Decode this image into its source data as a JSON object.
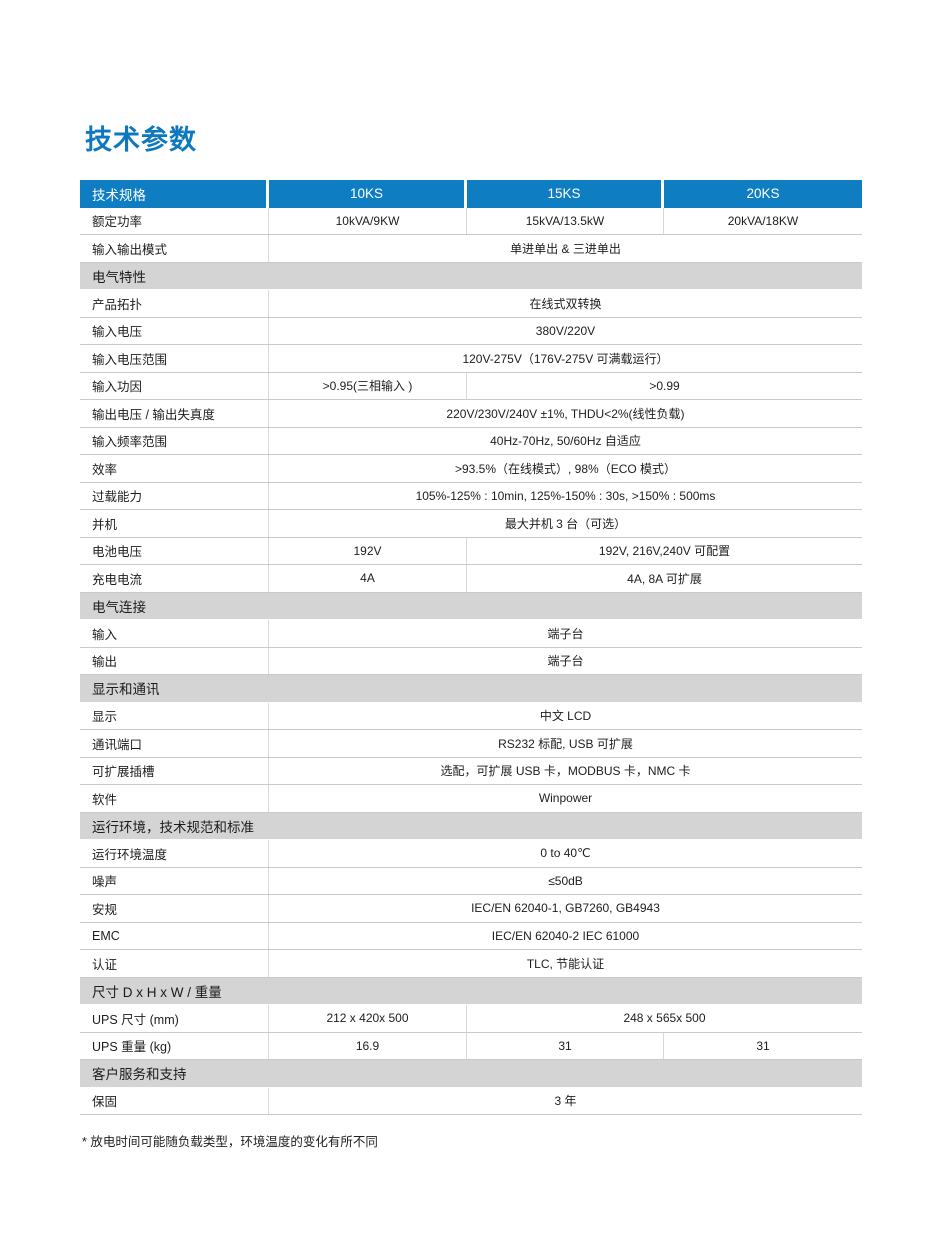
{
  "page": {
    "title": "技术参数",
    "footnote": "* 放电时间可能随负载类型，环境温度的变化有所不同"
  },
  "colors": {
    "header_blue": "#0e7dc2",
    "title_blue": "#0d78bf",
    "section_gray": "#d4d4d4",
    "row_line_gray": "#c9c9c9"
  },
  "table": {
    "columns": [
      "技术规格",
      "10KS",
      "15KS",
      "20KS"
    ],
    "rows": [
      {
        "type": "data",
        "label": "额定功率",
        "cells": [
          {
            "text": "10kVA/9KW",
            "span": 1
          },
          {
            "text": "15kVA/13.5kW",
            "span": 1
          },
          {
            "text": "20kVA/18KW",
            "span": 1
          }
        ]
      },
      {
        "type": "data",
        "label": "输入输出模式",
        "cells": [
          {
            "text": "单进单出 & 三进单出",
            "span": 3
          }
        ]
      },
      {
        "type": "section",
        "label": "电气特性"
      },
      {
        "type": "data",
        "label": "产品拓扑",
        "cells": [
          {
            "text": "在线式双转换",
            "span": 3
          }
        ]
      },
      {
        "type": "data",
        "label": "输入电压",
        "cells": [
          {
            "text": "380V/220V",
            "span": 3
          }
        ]
      },
      {
        "type": "data",
        "label": "输入电压范围",
        "cells": [
          {
            "text": "120V-275V（176V-275V 可满载运行）",
            "span": 3
          }
        ]
      },
      {
        "type": "data",
        "label": "输入功因",
        "cells": [
          {
            "text": ">0.95(三相输入 )",
            "span": 1
          },
          {
            "text": ">0.99",
            "span": 2
          }
        ]
      },
      {
        "type": "data",
        "label": "输出电压 / 输出失真度",
        "cells": [
          {
            "text": "220V/230V/240V ±1%, THDU<2%(线性负载)",
            "span": 3
          }
        ]
      },
      {
        "type": "data",
        "label": "输入频率范围",
        "cells": [
          {
            "text": "40Hz-70Hz, 50/60Hz 自适应",
            "span": 3
          }
        ]
      },
      {
        "type": "data",
        "label": "效率",
        "cells": [
          {
            "text": ">93.5%（在线模式）, 98%（ECO 模式）",
            "span": 3
          }
        ]
      },
      {
        "type": "data",
        "label": "过载能力",
        "cells": [
          {
            "text": "105%-125% : 10min, 125%-150% : 30s, >150% : 500ms",
            "span": 3
          }
        ]
      },
      {
        "type": "data",
        "label": "并机",
        "cells": [
          {
            "text": "最大并机 3 台（可选）",
            "span": 3
          }
        ]
      },
      {
        "type": "data",
        "label": "电池电压",
        "cells": [
          {
            "text": "192V",
            "span": 1
          },
          {
            "text": "192V, 216V,240V 可配置",
            "span": 2
          }
        ]
      },
      {
        "type": "data",
        "label": "充电电流",
        "cells": [
          {
            "text": "4A",
            "span": 1
          },
          {
            "text": "4A, 8A 可扩展",
            "span": 2
          }
        ]
      },
      {
        "type": "section",
        "label": "电气连接"
      },
      {
        "type": "data",
        "label": "输入",
        "cells": [
          {
            "text": "端子台",
            "span": 3
          }
        ]
      },
      {
        "type": "data",
        "label": "输出",
        "cells": [
          {
            "text": "端子台",
            "span": 3
          }
        ]
      },
      {
        "type": "section",
        "label": "显示和通讯"
      },
      {
        "type": "data",
        "label": "显示",
        "cells": [
          {
            "text": "中文 LCD",
            "span": 3
          }
        ]
      },
      {
        "type": "data",
        "label": "通讯端口",
        "cells": [
          {
            "text": "RS232 标配, USB 可扩展",
            "span": 3
          }
        ]
      },
      {
        "type": "data",
        "label": "可扩展插槽",
        "cells": [
          {
            "text": "选配，可扩展 USB 卡，MODBUS 卡，NMC 卡",
            "span": 3
          }
        ]
      },
      {
        "type": "data",
        "label": "软件",
        "cells": [
          {
            "text": "Winpower",
            "span": 3
          }
        ]
      },
      {
        "type": "section",
        "label": "运行环境，技术规范和标准"
      },
      {
        "type": "data",
        "label": "运行环境温度",
        "cells": [
          {
            "text": "0 to 40℃",
            "span": 3
          }
        ]
      },
      {
        "type": "data",
        "label": "噪声",
        "cells": [
          {
            "text": "≤50dB",
            "span": 3
          }
        ]
      },
      {
        "type": "data",
        "label": "安规",
        "cells": [
          {
            "text": "IEC/EN 62040-1, GB7260, GB4943",
            "span": 3
          }
        ]
      },
      {
        "type": "data",
        "label": "EMC",
        "cells": [
          {
            "text": "IEC/EN 62040-2  IEC 61000",
            "span": 3
          }
        ]
      },
      {
        "type": "data",
        "label": "认证",
        "cells": [
          {
            "text": "TLC, 节能认证",
            "span": 3
          }
        ]
      },
      {
        "type": "section",
        "label": "尺寸 D x H x W / 重量"
      },
      {
        "type": "data",
        "label": "UPS 尺寸 (mm)",
        "cells": [
          {
            "text": "212 x 420x 500",
            "span": 1
          },
          {
            "text": "248 x 565x 500",
            "span": 2
          }
        ]
      },
      {
        "type": "data",
        "label": "UPS 重量 (kg)",
        "cells": [
          {
            "text": "16.9",
            "span": 1
          },
          {
            "text": "31",
            "span": 1
          },
          {
            "text": "31",
            "span": 1
          }
        ]
      },
      {
        "type": "section",
        "label": "客户服务和支持"
      },
      {
        "type": "data",
        "label": "保固",
        "cells": [
          {
            "text": "3 年",
            "span": 3
          }
        ]
      }
    ]
  }
}
